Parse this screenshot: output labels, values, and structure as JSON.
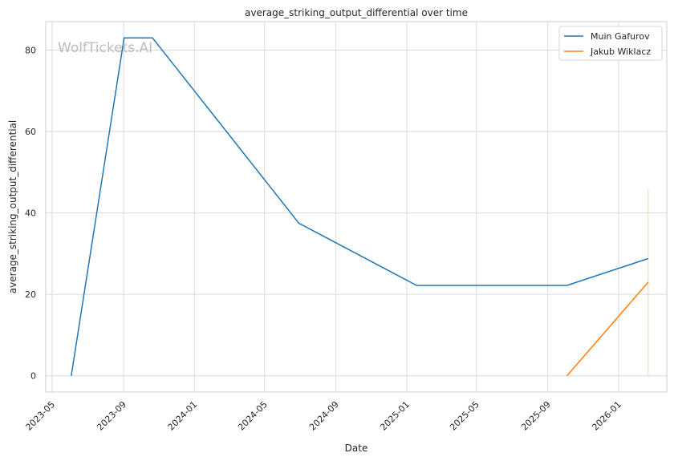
{
  "chart_data": {
    "type": "line",
    "title": "average_striking_output_differential over time",
    "xlabel": "Date",
    "ylabel": "average_striking_output_differential",
    "watermark": "WolfTickets.AI",
    "x_ticks": [
      "2023-05",
      "2023-09",
      "2024-01",
      "2024-05",
      "2024-09",
      "2025-01",
      "2025-05",
      "2025-09",
      "2026-01"
    ],
    "y_ticks": [
      0,
      20,
      40,
      60,
      80
    ],
    "xlim": [
      "2023-04-20",
      "2026-03-25"
    ],
    "ylim": [
      -4,
      87
    ],
    "grid": true,
    "legend_position": "top-right",
    "series": [
      {
        "name": "Muin Gafurov",
        "color": "#1f77b4",
        "points": [
          {
            "x": "2023-06-03",
            "y": 0
          },
          {
            "x": "2023-09-02",
            "y": 83
          },
          {
            "x": "2023-10-21",
            "y": 83
          },
          {
            "x": "2024-06-29",
            "y": 37.5
          },
          {
            "x": "2025-01-18",
            "y": 22.2
          },
          {
            "x": "2025-10-04",
            "y": 22.2
          },
          {
            "x": "2026-02-21",
            "y": 28.8
          }
        ]
      },
      {
        "name": "Jakub Wiklacz",
        "color": "#ff7f0e",
        "points": [
          {
            "x": "2025-10-04",
            "y": 0
          },
          {
            "x": "2026-02-21",
            "y": 23
          }
        ],
        "range_band": {
          "x": "2026-02-21",
          "y_low": 0,
          "y_high": 46
        }
      }
    ]
  }
}
